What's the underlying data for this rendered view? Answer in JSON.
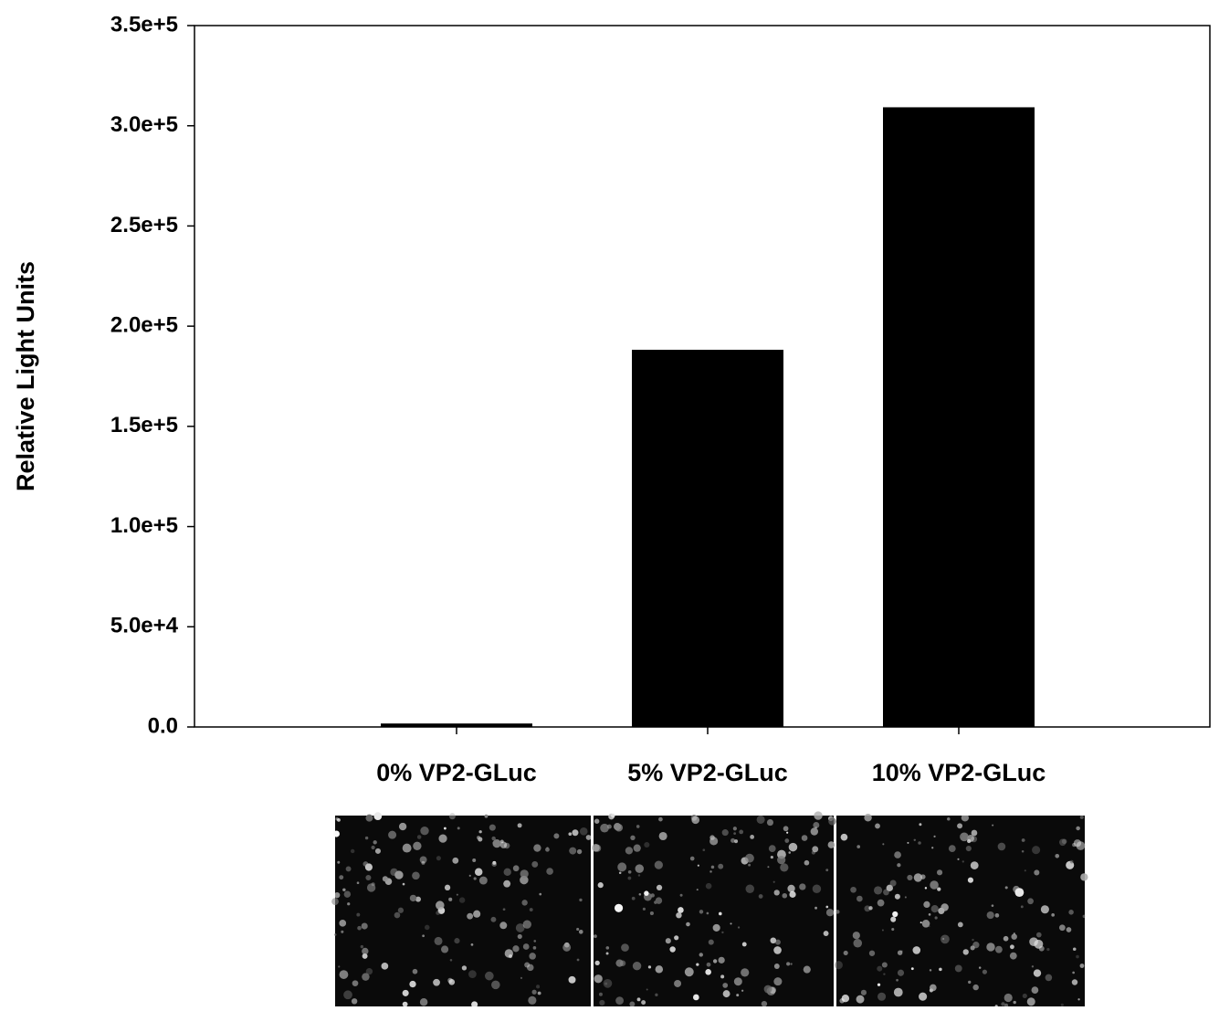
{
  "chart_data": {
    "type": "bar",
    "y_label": "Relative Light Units",
    "categories": [
      "0% VP2-GLuc",
      "5% VP2-GLuc",
      "10% VP2-GLuc"
    ],
    "values": [
      1500,
      188000,
      309000
    ],
    "color": "#000000",
    "ylim": [
      0,
      350000
    ],
    "yticks": [
      {
        "value": 0,
        "label": "0.0"
      },
      {
        "value": 50000,
        "label": "5.0e+4"
      },
      {
        "value": 100000,
        "label": "1.0e+5"
      },
      {
        "value": 150000,
        "label": "1.5e+5"
      },
      {
        "value": 200000,
        "label": "2.0e+5"
      },
      {
        "value": 250000,
        "label": "2.5e+5"
      },
      {
        "value": 300000,
        "label": "3.0e+5"
      },
      {
        "value": 350000,
        "label": "3.5e+5"
      }
    ],
    "grid": false
  }
}
